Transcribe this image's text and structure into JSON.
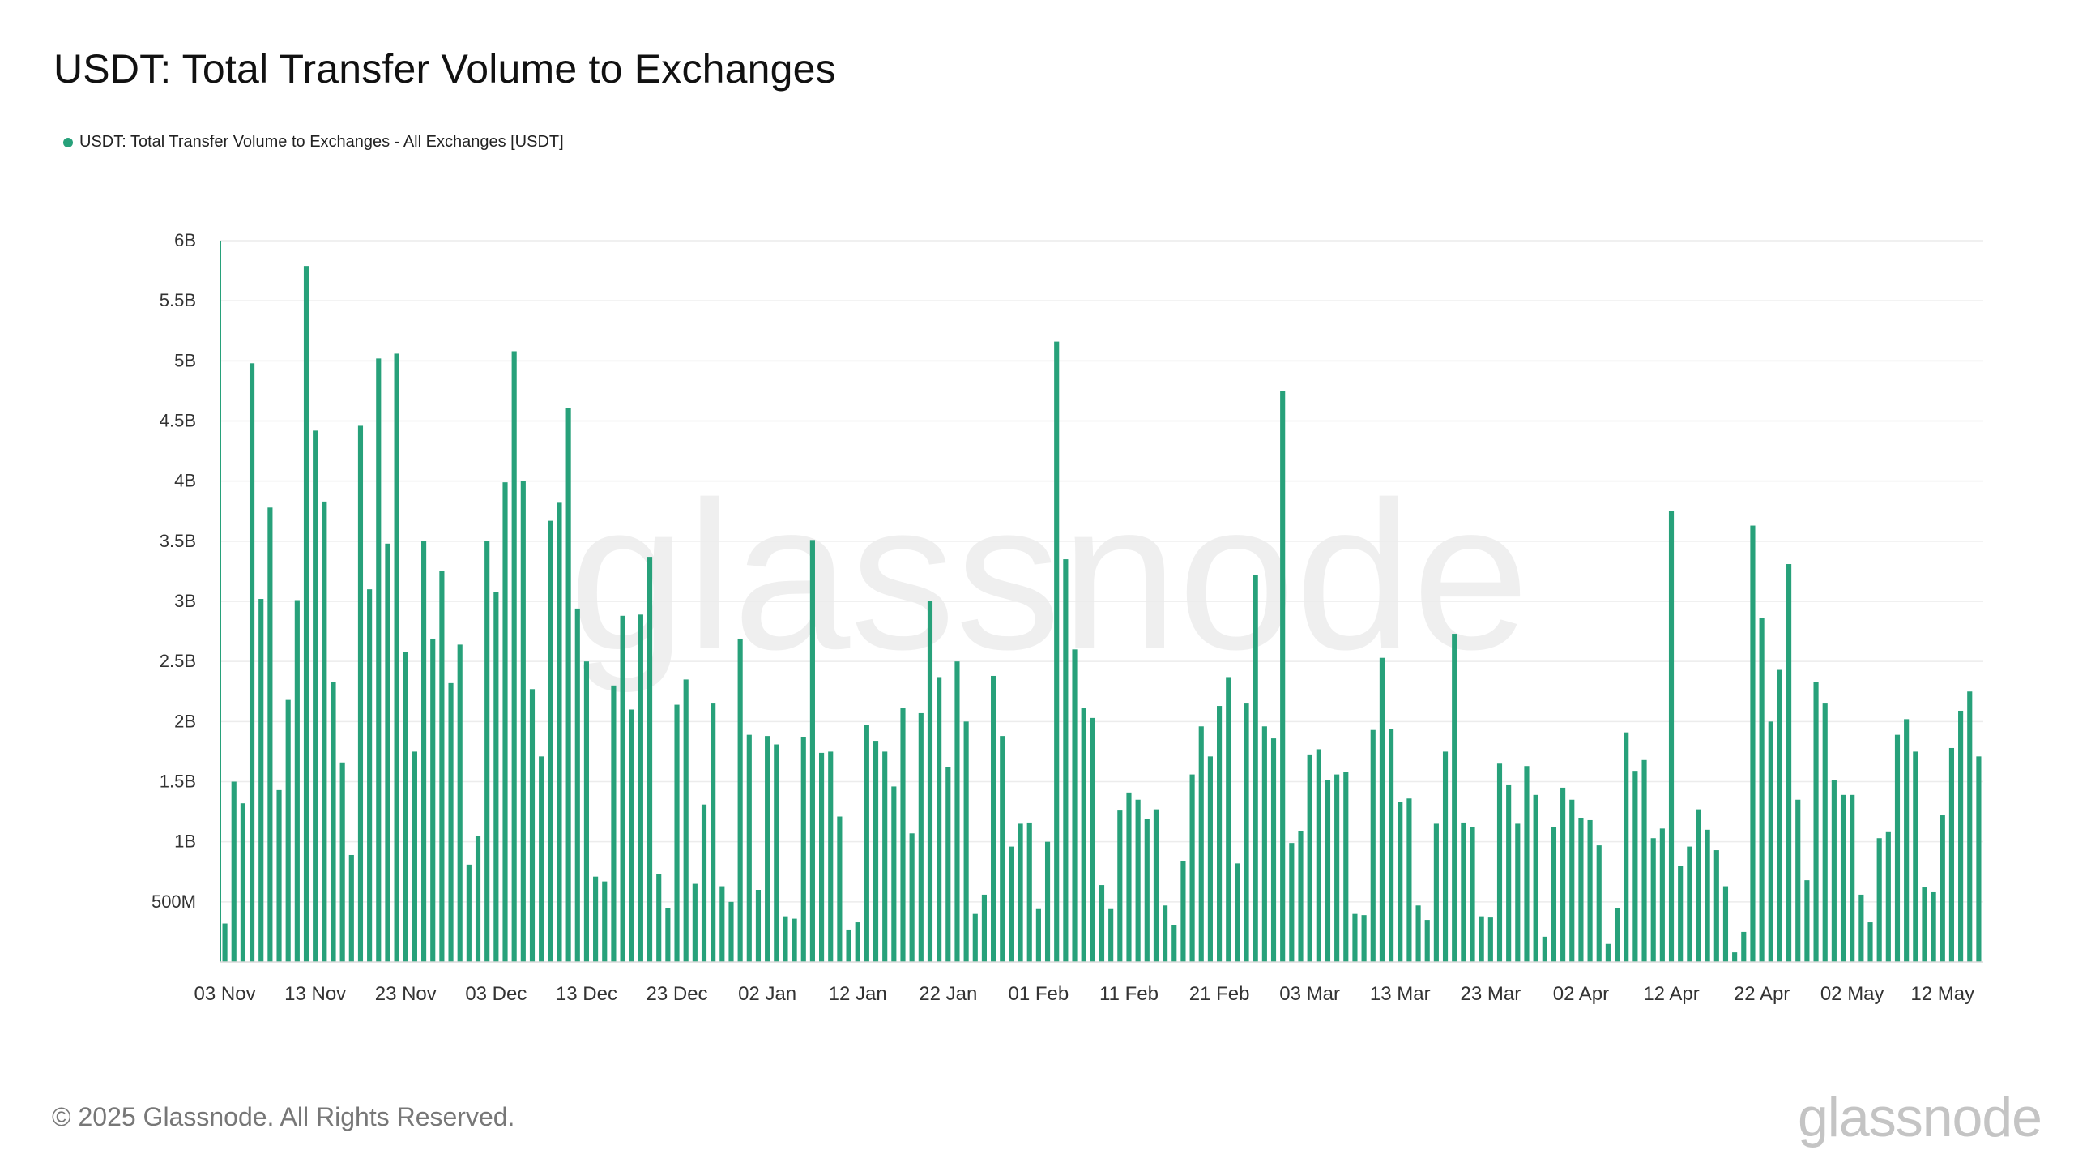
{
  "chart_data": {
    "type": "bar",
    "title": "USDT: Total Transfer Volume to Exchanges",
    "legend_position": "top-left",
    "grid": true,
    "ylim": [
      0,
      6000000000
    ],
    "yticks": [
      {
        "value": 500000000,
        "label": "500M"
      },
      {
        "value": 1000000000,
        "label": "1B"
      },
      {
        "value": 1500000000,
        "label": "1.5B"
      },
      {
        "value": 2000000000,
        "label": "2B"
      },
      {
        "value": 2500000000,
        "label": "2.5B"
      },
      {
        "value": 3000000000,
        "label": "3B"
      },
      {
        "value": 3500000000,
        "label": "3.5B"
      },
      {
        "value": 4000000000,
        "label": "4B"
      },
      {
        "value": 4500000000,
        "label": "4.5B"
      },
      {
        "value": 5000000000,
        "label": "5B"
      },
      {
        "value": 5500000000,
        "label": "5.5B"
      },
      {
        "value": 6000000000,
        "label": "6B"
      }
    ],
    "xticks": [
      {
        "index": 0,
        "label": "03 Nov"
      },
      {
        "index": 10,
        "label": "13 Nov"
      },
      {
        "index": 20,
        "label": "23 Nov"
      },
      {
        "index": 30,
        "label": "03 Dec"
      },
      {
        "index": 40,
        "label": "13 Dec"
      },
      {
        "index": 50,
        "label": "23 Dec"
      },
      {
        "index": 60,
        "label": "02 Jan"
      },
      {
        "index": 70,
        "label": "12 Jan"
      },
      {
        "index": 80,
        "label": "22 Jan"
      },
      {
        "index": 90,
        "label": "01 Feb"
      },
      {
        "index": 100,
        "label": "11 Feb"
      },
      {
        "index": 110,
        "label": "21 Feb"
      },
      {
        "index": 120,
        "label": "03 Mar"
      },
      {
        "index": 130,
        "label": "13 Mar"
      },
      {
        "index": 140,
        "label": "23 Mar"
      },
      {
        "index": 150,
        "label": "02 Apr"
      },
      {
        "index": 160,
        "label": "12 Apr"
      },
      {
        "index": 170,
        "label": "22 Apr"
      },
      {
        "index": 180,
        "label": "02 May"
      },
      {
        "index": 190,
        "label": "12 May"
      }
    ],
    "x_start": "2024-11-03",
    "x_end": "2025-05-16",
    "series": [
      {
        "name": "USDT: Total Transfer Volume to Exchanges - All Exchanges [USDT]",
        "color": "#27a17a",
        "values": [
          0.32,
          1.5,
          1.32,
          4.98,
          3.02,
          3.78,
          1.43,
          2.18,
          3.01,
          5.79,
          4.42,
          3.83,
          2.33,
          1.66,
          0.89,
          4.46,
          3.1,
          5.02,
          3.48,
          5.06,
          2.58,
          1.75,
          3.5,
          2.69,
          3.25,
          2.32,
          2.64,
          0.81,
          1.05,
          3.5,
          3.08,
          3.99,
          5.08,
          4.0,
          2.27,
          1.71,
          3.67,
          3.82,
          4.61,
          2.94,
          2.5,
          0.71,
          0.67,
          2.3,
          2.88,
          2.1,
          2.89,
          3.37,
          0.73,
          0.45,
          2.14,
          2.35,
          0.65,
          1.31,
          2.15,
          0.63,
          0.5,
          2.69,
          1.89,
          0.6,
          1.88,
          1.81,
          0.38,
          0.36,
          1.87,
          3.51,
          1.74,
          1.75,
          1.21,
          0.27,
          0.33,
          1.97,
          1.84,
          1.75,
          1.46,
          2.11,
          1.07,
          2.07,
          3.0,
          2.37,
          1.62,
          2.5,
          2.0,
          0.4,
          0.56,
          2.38,
          1.88,
          0.96,
          1.15,
          1.16,
          0.44,
          1.0,
          5.16,
          3.35,
          2.6,
          2.11,
          2.03,
          0.64,
          0.44,
          1.26,
          1.41,
          1.35,
          1.19,
          1.27,
          0.47,
          0.31,
          0.84,
          1.56,
          1.96,
          1.71,
          2.13,
          2.37,
          0.82,
          2.15,
          3.22,
          1.96,
          1.86,
          4.75,
          0.99,
          1.09,
          1.72,
          1.77,
          1.51,
          1.56,
          1.58,
          0.4,
          0.39,
          1.93,
          2.53,
          1.94,
          1.33,
          1.36,
          0.47,
          0.35,
          1.15,
          1.75,
          2.73,
          1.16,
          1.12,
          0.38,
          0.37,
          1.65,
          1.47,
          1.15,
          1.63,
          1.39,
          0.21,
          1.12,
          1.45,
          1.35,
          1.2,
          1.18,
          0.97,
          0.15,
          0.45,
          1.91,
          1.59,
          1.68,
          1.03,
          1.11,
          3.75,
          0.8,
          0.96,
          1.27,
          1.1,
          0.93,
          0.63,
          0.08,
          0.25,
          3.63,
          2.86,
          2.0,
          2.43,
          3.31,
          1.35,
          0.68,
          2.33,
          2.15,
          1.51,
          1.39,
          1.39,
          0.56,
          0.33,
          1.03,
          1.08,
          1.89,
          2.02,
          1.75,
          0.62,
          0.58,
          1.22,
          1.78,
          2.09,
          2.25,
          1.71
        ]
      }
    ]
  },
  "footer": {
    "copyright": "© 2025 Glassnode. All Rights Reserved.",
    "logo_text": "glassnode",
    "watermark_text": "glassnode"
  }
}
